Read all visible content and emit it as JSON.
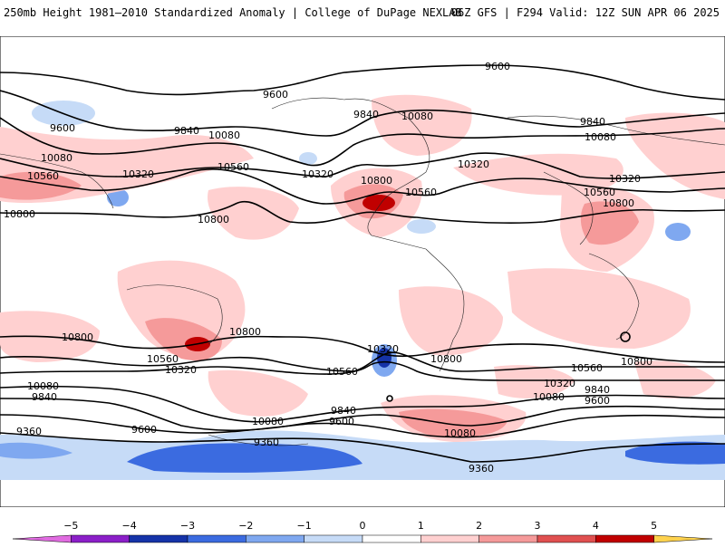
{
  "header": {
    "title_left": "250mb Height 1981–2010 Standardized Anomaly | College of DuPage NEXLAB",
    "title_right": "06Z GFS | F294 Valid: 12Z SUN APR 06 2025"
  },
  "map": {
    "contour_labels": [
      "9360",
      "9600",
      "9840",
      "10080",
      "10320",
      "10560",
      "10800"
    ],
    "positive_anomaly_color": "#f4a6a6",
    "strong_positive_color": "#c80000",
    "negative_anomaly_color": "#a9c7f3",
    "strong_negative_color": "#1f4fd1"
  },
  "colorbar": {
    "ticks": [
      "−5",
      "−4",
      "−3",
      "−2",
      "−1",
      "0",
      "1",
      "2",
      "3",
      "4",
      "5"
    ],
    "colors": [
      "#e06be0",
      "#8b1fc8",
      "#1533a8",
      "#3b6be0",
      "#7fa8f0",
      "#c6dbf7",
      "#ffffff",
      "#ffd0d0",
      "#f59a9a",
      "#e05050",
      "#c00000",
      "#f0a000",
      "#ffd24d"
    ]
  }
}
